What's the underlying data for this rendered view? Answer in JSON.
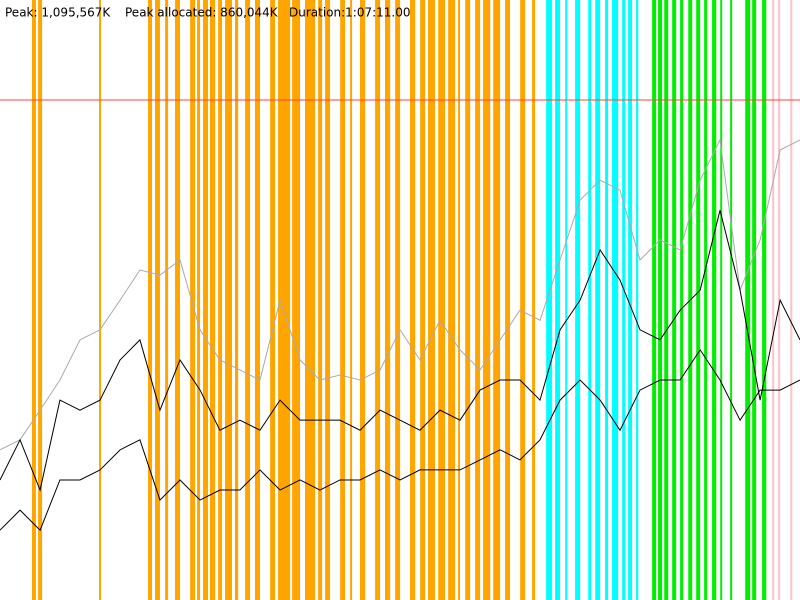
{
  "chart_data": {
    "type": "line",
    "stats": [
      "Peak: 1,095,567K",
      "Peak allocated: 860,044K",
      "Duration:1:07:11.00"
    ],
    "xlim": [
      0,
      4031
    ],
    "ylim": [
      0,
      1314680
    ],
    "peak_line": {
      "value": 1095567,
      "color": "#ff4040"
    },
    "x": [
      0,
      101,
      202,
      302,
      403,
      504,
      605,
      705,
      806,
      907,
      1008,
      1108,
      1209,
      1310,
      1411,
      1512,
      1612,
      1713,
      1814,
      1915,
      2016,
      2116,
      2217,
      2318,
      2419,
      2520,
      2620,
      2721,
      2822,
      2923,
      3024,
      3124,
      3225,
      3326,
      3427,
      3528,
      3628,
      3729,
      3830,
      3931,
      4031
    ],
    "series": [
      {
        "color": "#aaaaaa",
        "values": [
          329000,
          351000,
          416000,
          482000,
          570000,
          592000,
          657000,
          723000,
          712000,
          745000,
          592000,
          526000,
          504000,
          482000,
          657000,
          526000,
          482000,
          493000,
          482000,
          504000,
          592000,
          526000,
          613000,
          548000,
          504000,
          570000,
          635000,
          613000,
          745000,
          876000,
          920000,
          898000,
          745000,
          789000,
          767000,
          920000,
          1008000,
          679000,
          789000,
          986000,
          1008000
        ]
      },
      {
        "color": "#000000",
        "values": [
          263000,
          351000,
          241000,
          438000,
          416000,
          438000,
          526000,
          570000,
          416000,
          526000,
          460000,
          372000,
          394000,
          372000,
          438000,
          394000,
          394000,
          394000,
          372000,
          416000,
          394000,
          372000,
          416000,
          394000,
          460000,
          482000,
          482000,
          438000,
          592000,
          657000,
          767000,
          701000,
          592000,
          570000,
          635000,
          679000,
          854000,
          679000,
          438000,
          657000,
          570000
        ]
      },
      {
        "color": "#000000",
        "values": [
          153000,
          197000,
          153000,
          263000,
          263000,
          285000,
          329000,
          351000,
          219000,
          263000,
          219000,
          241000,
          241000,
          285000,
          241000,
          263000,
          241000,
          263000,
          263000,
          285000,
          263000,
          285000,
          285000,
          285000,
          307000,
          329000,
          307000,
          351000,
          438000,
          482000,
          438000,
          372000,
          460000,
          482000,
          482000,
          548000,
          482000,
          394000,
          460000,
          460000,
          482000
        ]
      }
    ],
    "bands": [
      {
        "color": "#ffa500",
        "ranges": [
          [
            161,
            181
          ],
          [
            192,
            212
          ],
          [
            499,
            509
          ],
          [
            746,
            766
          ],
          [
            781,
            806
          ],
          [
            832,
            847
          ],
          [
            882,
            907
          ],
          [
            958,
            983
          ],
          [
            993,
            1008
          ],
          [
            1023,
            1048
          ],
          [
            1058,
            1084
          ],
          [
            1099,
            1119
          ],
          [
            1134,
            1169
          ],
          [
            1184,
            1200
          ],
          [
            1235,
            1260
          ],
          [
            1285,
            1310
          ],
          [
            1361,
            1386
          ],
          [
            1401,
            1462
          ],
          [
            1472,
            1512
          ],
          [
            1537,
            1588
          ],
          [
            1603,
            1623
          ],
          [
            1638,
            1663
          ],
          [
            1714,
            1739
          ],
          [
            1764,
            1774
          ],
          [
            1814,
            1840
          ],
          [
            1890,
            1915
          ],
          [
            1940,
            1966
          ],
          [
            1991,
            2016
          ],
          [
            2066,
            2092
          ],
          [
            2117,
            2142
          ],
          [
            2157,
            2192
          ],
          [
            2208,
            2243
          ],
          [
            2258,
            2293
          ],
          [
            2308,
            2318
          ],
          [
            2344,
            2369
          ],
          [
            2394,
            2419
          ],
          [
            2434,
            2470
          ],
          [
            2485,
            2520
          ],
          [
            2545,
            2570
          ],
          [
            2621,
            2646
          ],
          [
            2681,
            2696
          ]
        ]
      },
      {
        "color": "#00ffff",
        "ranges": [
          [
            2752,
            2782
          ],
          [
            2797,
            2822
          ],
          [
            2848,
            2858
          ],
          [
            2898,
            2923
          ],
          [
            2964,
            2979
          ],
          [
            2999,
            3024
          ],
          [
            3049,
            3064
          ],
          [
            3084,
            3115
          ],
          [
            3135,
            3150
          ],
          [
            3165,
            3185
          ],
          [
            3205,
            3216
          ]
        ]
      },
      {
        "color": "#00ee00",
        "ranges": [
          [
            3286,
            3306
          ],
          [
            3316,
            3336
          ],
          [
            3347,
            3367
          ],
          [
            3387,
            3407
          ],
          [
            3427,
            3442
          ],
          [
            3468,
            3488
          ],
          [
            3508,
            3528
          ],
          [
            3548,
            3563
          ],
          [
            3588,
            3609
          ],
          [
            3629,
            3639
          ],
          [
            3679,
            3689
          ],
          [
            3755,
            3780
          ],
          [
            3790,
            3810
          ],
          [
            3840,
            3861
          ]
        ]
      },
      {
        "color": "#ffc0cb",
        "ranges": [
          [
            3891,
            3901
          ],
          [
            3921,
            3931
          ],
          [
            3982,
            3992
          ]
        ]
      }
    ]
  }
}
